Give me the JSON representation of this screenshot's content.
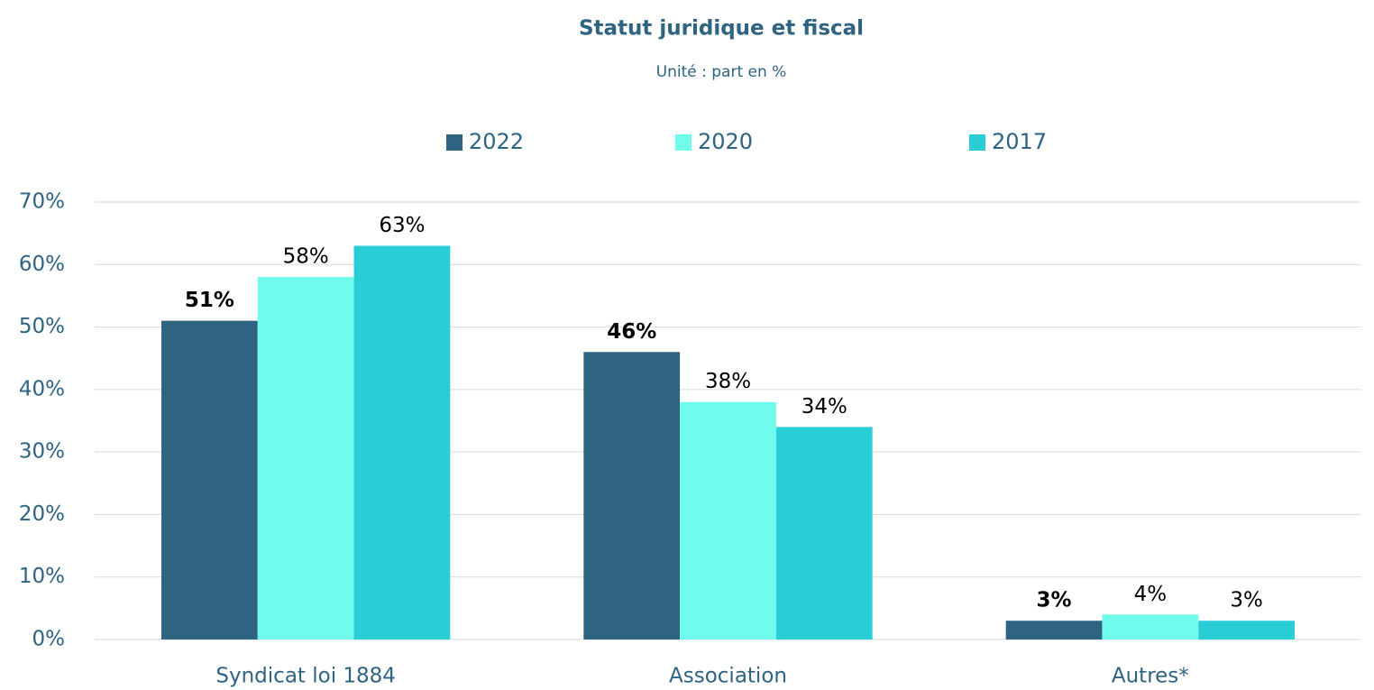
{
  "chart_data": {
    "type": "bar",
    "title": "Statut juridique et fiscal",
    "subtitle": "Unité : part en %",
    "categories": [
      "Syndicat loi 1884",
      "Association",
      "Autres*"
    ],
    "series": [
      {
        "name": "2022",
        "color": "#2e6382",
        "values": [
          51,
          46,
          3
        ],
        "value_labels": [
          "51%",
          "46%",
          "3%"
        ],
        "label_bold": true
      },
      {
        "name": "2020",
        "color": "#6ffcec",
        "values": [
          58,
          38,
          4
        ],
        "value_labels": [
          "58%",
          "38%",
          "4%"
        ],
        "label_bold": false
      },
      {
        "name": "2017",
        "color": "#29cdd6",
        "values": [
          63,
          34,
          3
        ],
        "value_labels": [
          "63%",
          "34%",
          "3%"
        ],
        "label_bold": false
      }
    ],
    "ylim": [
      0,
      70
    ],
    "yticks": [
      {
        "value": 0,
        "label": "0%"
      },
      {
        "value": 10,
        "label": "10%"
      },
      {
        "value": 20,
        "label": "20%"
      },
      {
        "value": 30,
        "label": "30%"
      },
      {
        "value": 40,
        "label": "40%"
      },
      {
        "value": 50,
        "label": "50%"
      },
      {
        "value": 60,
        "label": "60%"
      },
      {
        "value": 70,
        "label": "70%"
      }
    ],
    "grid": true,
    "legend": "top"
  }
}
